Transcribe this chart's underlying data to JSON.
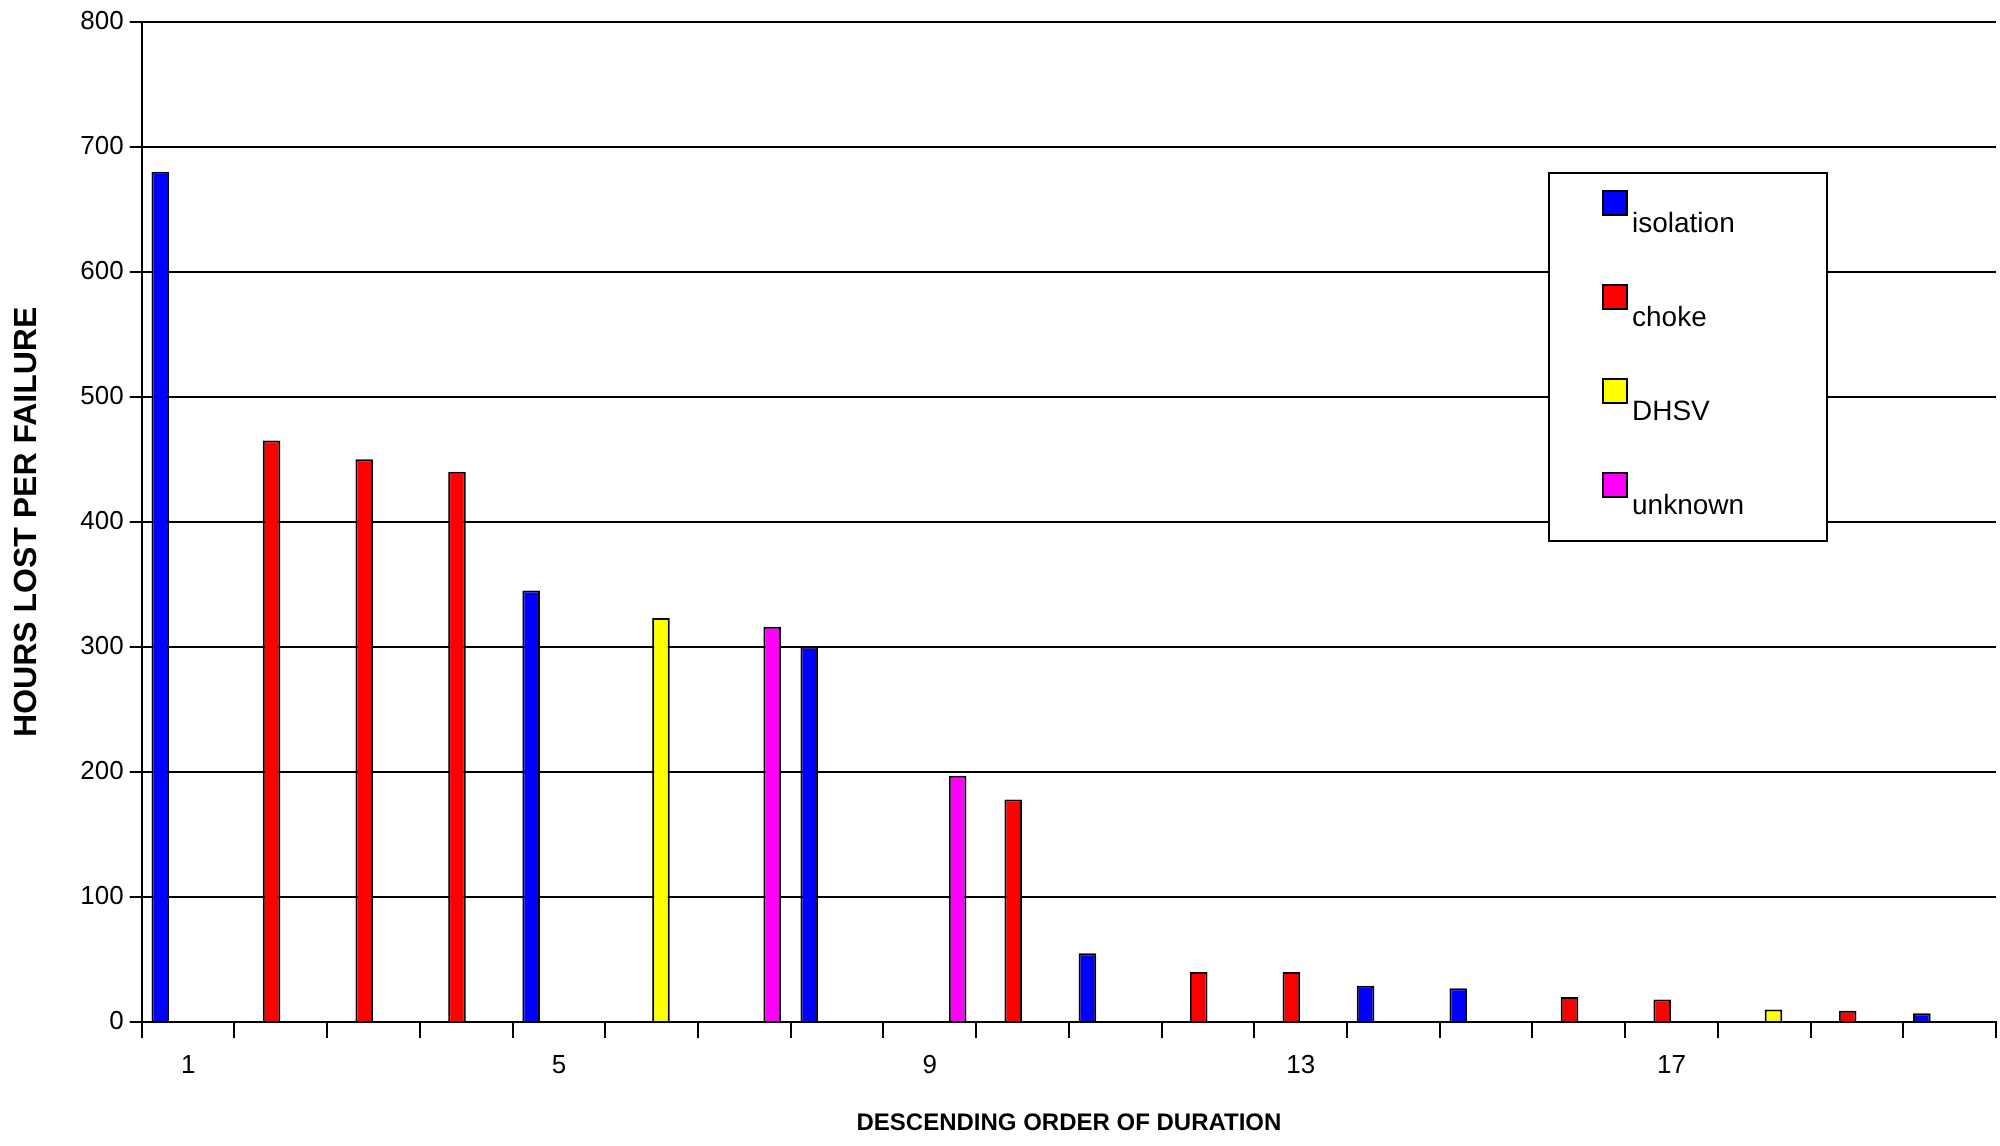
{
  "chart_data": {
    "type": "bar",
    "xlabel": "DESCENDING ORDER OF DURATION",
    "ylabel": "HOURS LOST PER FAILURE",
    "categories": [
      "1",
      null,
      null,
      null,
      "5",
      null,
      null,
      null,
      "9",
      null,
      null,
      null,
      "13",
      null,
      null,
      null,
      "17",
      null,
      null,
      null
    ],
    "series": [
      {
        "name": "isolation",
        "color": "#0000ff",
        "values": [
          680,
          null,
          null,
          null,
          345,
          null,
          null,
          300,
          null,
          null,
          55,
          null,
          null,
          29,
          27,
          null,
          null,
          null,
          null,
          7
        ]
      },
      {
        "name": "choke",
        "color": "#ff0000",
        "values": [
          null,
          465,
          450,
          440,
          null,
          null,
          null,
          null,
          null,
          178,
          null,
          40,
          40,
          null,
          null,
          20,
          18,
          null,
          9,
          null
        ]
      },
      {
        "name": "DHSV",
        "color": "#ffff00",
        "values": [
          null,
          null,
          null,
          null,
          null,
          323,
          null,
          null,
          null,
          null,
          null,
          null,
          null,
          null,
          null,
          null,
          null,
          10,
          null,
          null
        ]
      },
      {
        "name": "unknown",
        "color": "#ff00ff",
        "values": [
          null,
          null,
          null,
          null,
          null,
          null,
          316,
          null,
          197,
          null,
          null,
          null,
          null,
          null,
          null,
          null,
          null,
          null,
          null,
          null
        ]
      }
    ],
    "ylim": [
      0,
      800
    ],
    "yticks": [
      0,
      100,
      200,
      300,
      400,
      500,
      600,
      700,
      800
    ],
    "grid": "y",
    "legend": "right"
  }
}
